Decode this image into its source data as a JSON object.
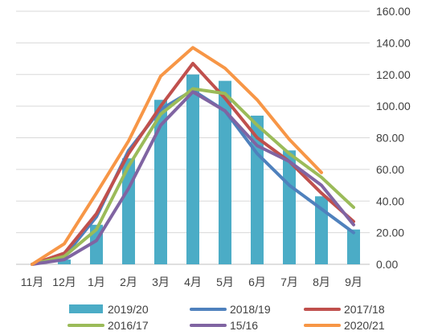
{
  "chart_data": {
    "type": "bar",
    "categories": [
      "11月",
      "12月",
      "1月",
      "2月",
      "3月",
      "4月",
      "5月",
      "6月",
      "7月",
      "8月",
      "9月"
    ],
    "y_ticks": [
      "0.00",
      "20.00",
      "40.00",
      "60.00",
      "80.00",
      "100.00",
      "120.00",
      "140.00",
      "160.00"
    ],
    "ylim": [
      0,
      160
    ],
    "grid": true,
    "y_axis_side": "right",
    "legend_position": "bottom",
    "bar_series": {
      "name": "2019/20",
      "color": "#4bacc6",
      "values": [
        0,
        3,
        25,
        67,
        104,
        120,
        116,
        94,
        72,
        43,
        22
      ]
    },
    "line_series": [
      {
        "name": "2018/19",
        "color": "#4f81bd",
        "values": [
          0,
          5,
          30,
          72,
          98,
          110,
          97,
          70,
          50,
          35,
          20
        ]
      },
      {
        "name": "2017/18",
        "color": "#c0504d",
        "values": [
          0,
          7,
          32,
          70,
          100,
          127,
          105,
          80,
          65,
          45,
          27
        ]
      },
      {
        "name": "2016/17",
        "color": "#9bbb59",
        "values": [
          0,
          5,
          22,
          62,
          95,
          111,
          108,
          88,
          70,
          55,
          36
        ]
      },
      {
        "name": "15/16",
        "color": "#8064a2",
        "values": [
          0,
          3,
          15,
          48,
          88,
          109,
          97,
          75,
          65,
          50,
          25
        ]
      },
      {
        "name": "2020/21",
        "color": "#f79646",
        "values": [
          0,
          13,
          45,
          78,
          119,
          137,
          124,
          104,
          79,
          58,
          null
        ]
      }
    ]
  }
}
